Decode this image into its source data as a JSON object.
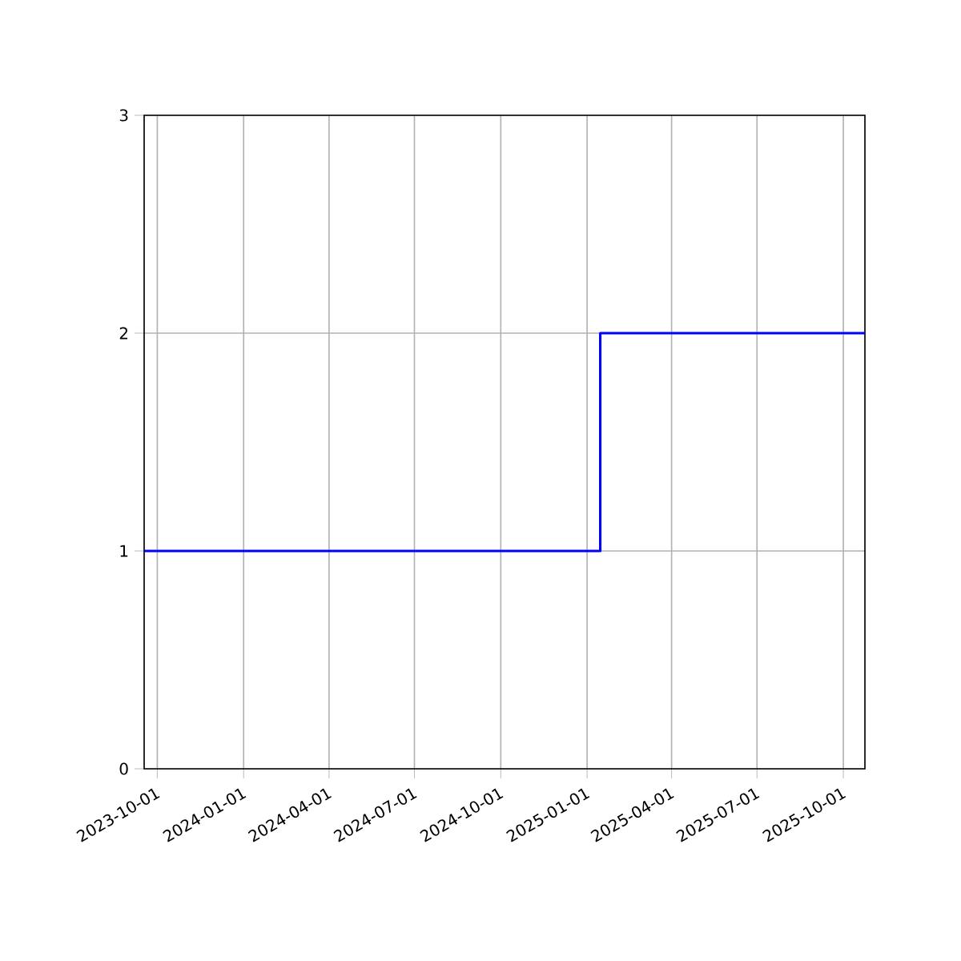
{
  "chart_data": {
    "type": "step",
    "x": [
      "2023-09-17",
      "2025-01-15",
      "2025-10-24"
    ],
    "values": [
      1,
      2,
      2
    ],
    "color": "#0000ff",
    "xlim": [
      "2023-09-17",
      "2025-10-24"
    ],
    "xticks": [
      "2023-10-01",
      "2024-01-01",
      "2024-04-01",
      "2024-07-01",
      "2024-10-01",
      "2025-01-01",
      "2025-04-01",
      "2025-07-01",
      "2025-10-01"
    ],
    "ylim": [
      0,
      3
    ],
    "yticks": [
      0,
      1,
      2,
      3
    ],
    "grid": true
  }
}
